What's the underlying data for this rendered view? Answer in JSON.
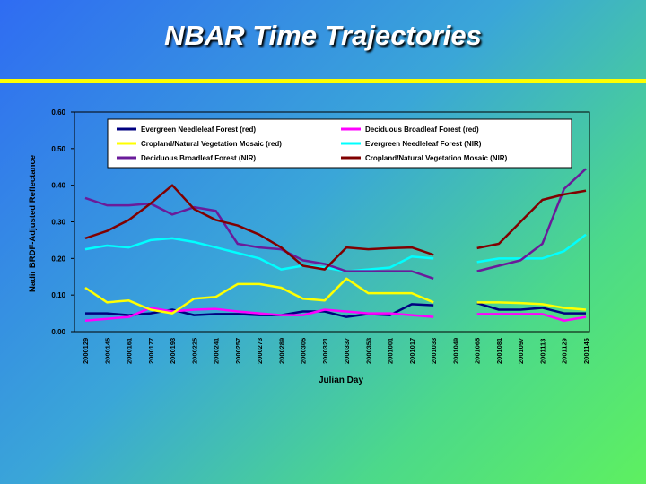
{
  "chart_data": {
    "type": "line",
    "title": "NBAR Time Trajectories",
    "x_label": "Julian Day",
    "y_label": "Nadir BRDF-Adjusted Reflectance",
    "categories": [
      "2000129",
      "2000145",
      "2000161",
      "2000177",
      "2000193",
      "2000225",
      "2000241",
      "2000257",
      "2000273",
      "2000289",
      "2000305",
      "2000321",
      "2000337",
      "2000353",
      "2001001",
      "2001017",
      "2001033",
      "2001049",
      "2001065",
      "2001081",
      "2001097",
      "2001113",
      "2001129",
      "2001145"
    ],
    "ylim": [
      0,
      0.6
    ],
    "yticks": [
      {
        "value": 0,
        "label": "0.00"
      },
      {
        "value": 0.1,
        "label": "0.10"
      },
      {
        "value": 0.2,
        "label": "0.20"
      },
      {
        "value": 0.3,
        "label": "0.30"
      },
      {
        "value": 0.4,
        "label": "0.40"
      },
      {
        "value": 0.5,
        "label": "0.50"
      },
      {
        "value": 0.6,
        "label": "0.60"
      }
    ],
    "series": [
      {
        "name": "Evergreen Needleleaf Forest (red)",
        "color": "#000080",
        "values": [
          0.05,
          0.05,
          0.045,
          0.05,
          0.06,
          0.045,
          0.048,
          0.048,
          0.045,
          0.045,
          0.055,
          0.055,
          0.04,
          0.048,
          0.045,
          0.075,
          0.072,
          null,
          0.078,
          0.06,
          0.06,
          0.065,
          0.05,
          0.05
        ]
      },
      {
        "name": "Deciduous Broadleaf Forest (red)",
        "color": "#ff00ff",
        "values": [
          0.03,
          0.035,
          0.04,
          0.065,
          0.055,
          0.06,
          0.062,
          0.055,
          0.05,
          0.045,
          0.045,
          0.06,
          0.055,
          0.05,
          0.05,
          0.045,
          0.04,
          null,
          0.048,
          0.048,
          0.048,
          0.048,
          0.03,
          0.04
        ]
      },
      {
        "name": "Cropland/Natural Vegetation Mosaic (red)",
        "color": "#ffff00",
        "values": [
          0.12,
          0.08,
          0.085,
          0.06,
          0.05,
          0.09,
          0.095,
          0.13,
          0.13,
          0.12,
          0.09,
          0.085,
          0.145,
          0.105,
          0.105,
          0.105,
          0.08,
          null,
          0.08,
          0.08,
          0.078,
          0.075,
          0.065,
          0.06
        ]
      },
      {
        "name": "Evergreen Needleleaf Forest (NIR)",
        "color": "#00ffff",
        "values": [
          0.225,
          0.235,
          0.23,
          0.25,
          0.255,
          0.245,
          0.23,
          0.215,
          0.2,
          0.17,
          0.18,
          0.175,
          0.165,
          0.17,
          0.175,
          0.205,
          0.2,
          null,
          0.19,
          0.2,
          0.2,
          0.2,
          0.22,
          0.265
        ]
      },
      {
        "name": "Deciduous Broadleaf Forest (NIR)",
        "color": "#6a1b9a",
        "values": [
          0.365,
          0.345,
          0.345,
          0.35,
          0.32,
          0.34,
          0.33,
          0.24,
          0.23,
          0.225,
          0.195,
          0.185,
          0.165,
          0.165,
          0.165,
          0.165,
          0.145,
          null,
          0.165,
          0.18,
          0.195,
          0.24,
          0.39,
          0.445
        ]
      },
      {
        "name": "Cropland/Natural Vegetation Mosaic (NIR)",
        "color": "#800000",
        "values": [
          0.255,
          0.275,
          0.305,
          0.35,
          0.4,
          0.335,
          0.305,
          0.29,
          0.265,
          0.23,
          0.18,
          0.17,
          0.23,
          0.225,
          0.228,
          0.23,
          0.21,
          null,
          0.228,
          0.24,
          0.3,
          0.36,
          0.375,
          0.385
        ]
      }
    ]
  }
}
